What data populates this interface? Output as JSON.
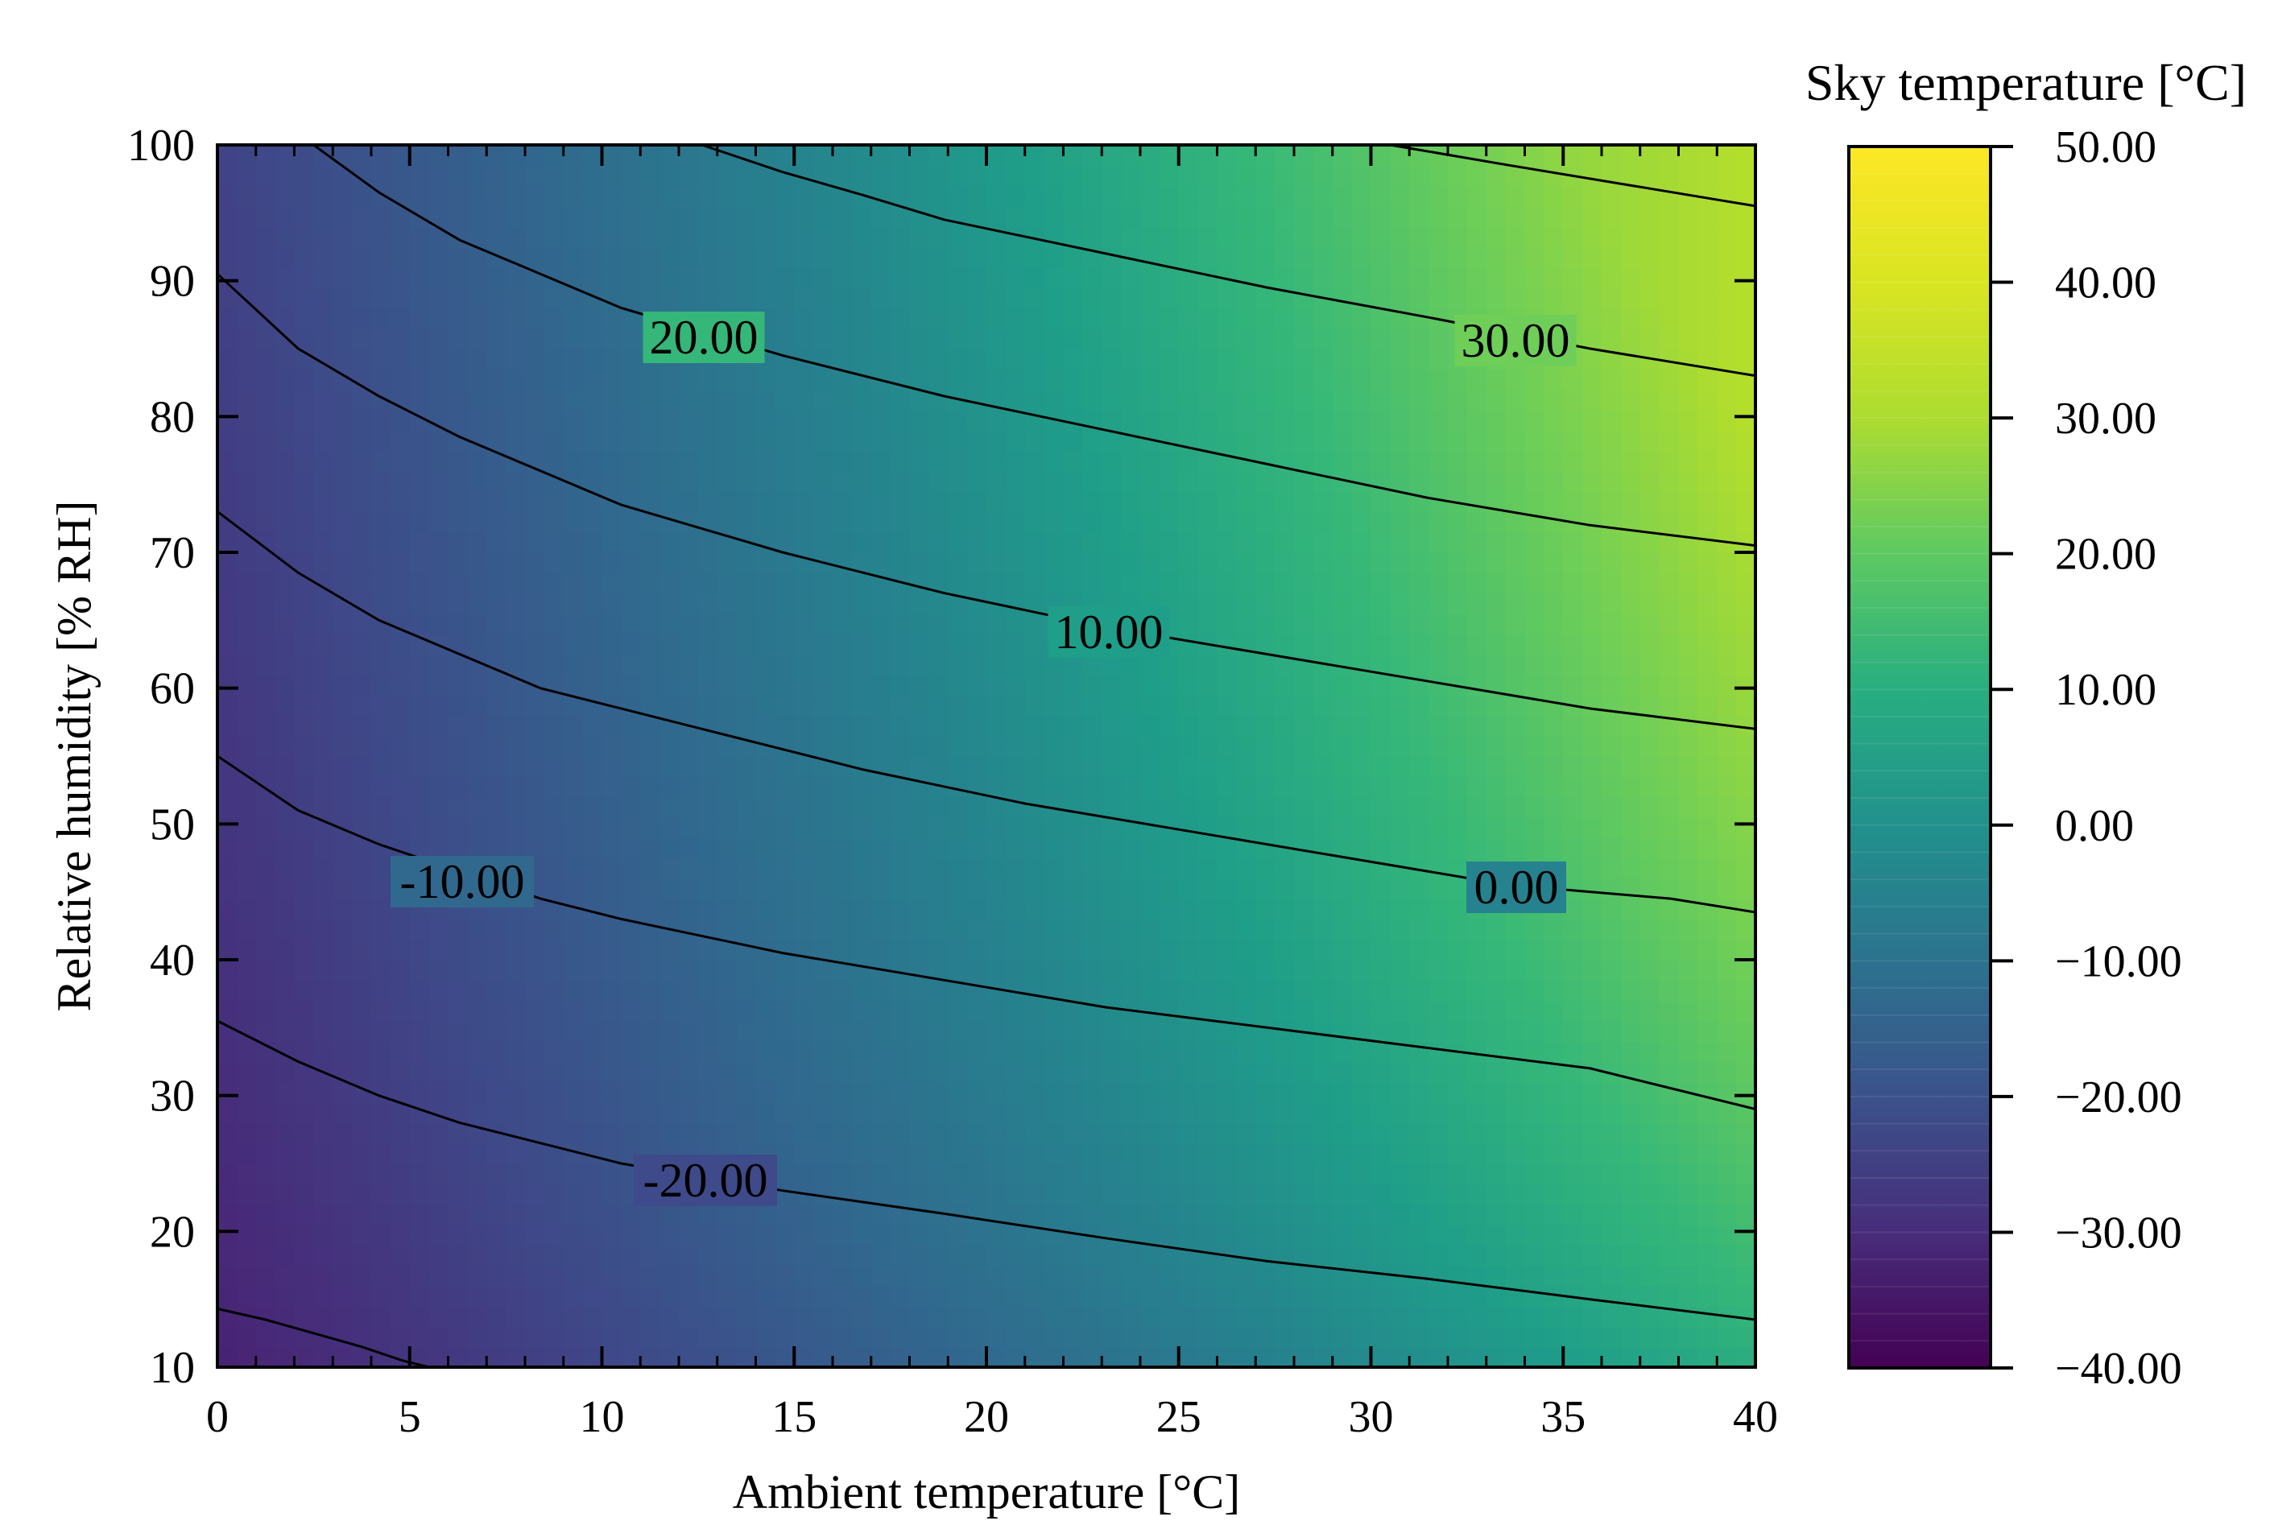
{
  "chart_data": {
    "type": "contour",
    "title": "",
    "xlabel": "Ambient temperature [°C]",
    "ylabel": "Relative humidity [% RH]",
    "xlim": [
      0,
      40
    ],
    "ylim": [
      10,
      100
    ],
    "x_ticks": [
      "0",
      "5",
      "10",
      "15",
      "20",
      "25",
      "30",
      "35",
      "40"
    ],
    "y_ticks": [
      "10",
      "20",
      "30",
      "40",
      "50",
      "60",
      "70",
      "80",
      "90",
      "100"
    ],
    "colorbar": {
      "label": "Sky temperature [°C]",
      "range": [
        -40,
        50
      ],
      "ticks": [
        "−40.00",
        "−30.00",
        "−20.00",
        "−10.00",
        "0.00",
        "10.00",
        "20.00",
        "30.00",
        "40.00",
        "50.00"
      ],
      "colormap": "viridis"
    },
    "contours": [
      {
        "level": -30,
        "label": "",
        "points": [
          [
            0,
            14.3
          ],
          [
            1.25,
            13.5
          ],
          [
            2.5,
            12.5
          ],
          [
            3.75,
            11.5
          ],
          [
            4.8,
            10.5
          ],
          [
            5.5,
            10
          ]
        ]
      },
      {
        "level": -20,
        "label": "-20.00",
        "points": [
          [
            0,
            35.5
          ],
          [
            2.1,
            32.5
          ],
          [
            4.2,
            30
          ],
          [
            6.3,
            28
          ],
          [
            8.4,
            26.5
          ],
          [
            10.5,
            25
          ],
          [
            14.7,
            23
          ],
          [
            18.9,
            21.3
          ],
          [
            23.1,
            19.5
          ],
          [
            27.3,
            17.8
          ],
          [
            31.5,
            16.5
          ],
          [
            35.7,
            15
          ],
          [
            40,
            13.5
          ]
        ]
      },
      {
        "level": -10,
        "label": "-10.00",
        "points": [
          [
            0,
            55
          ],
          [
            2.1,
            51
          ],
          [
            4.2,
            48.5
          ],
          [
            8.4,
            44.5
          ],
          [
            10.5,
            43
          ],
          [
            14.7,
            40.5
          ],
          [
            18.9,
            38.5
          ],
          [
            23.1,
            36.5
          ],
          [
            27.3,
            35
          ],
          [
            31.5,
            33.5
          ],
          [
            35.7,
            32
          ],
          [
            40,
            29
          ]
        ]
      },
      {
        "level": 0,
        "label": "0.00",
        "points": [
          [
            0,
            73
          ],
          [
            2.1,
            68.5
          ],
          [
            4.2,
            65
          ],
          [
            6.3,
            62.5
          ],
          [
            8.4,
            60
          ],
          [
            12.6,
            57
          ],
          [
            16.8,
            54
          ],
          [
            21,
            51.5
          ],
          [
            25.2,
            49.5
          ],
          [
            29.4,
            47.5
          ],
          [
            33.6,
            45.5
          ],
          [
            37.8,
            44.5
          ],
          [
            40,
            43.5
          ]
        ]
      },
      {
        "level": 10,
        "label": "10.00",
        "points": [
          [
            0,
            90.5
          ],
          [
            2.1,
            85
          ],
          [
            4.2,
            81.5
          ],
          [
            6.3,
            78.5
          ],
          [
            8.4,
            76
          ],
          [
            10.5,
            73.5
          ],
          [
            14.7,
            70
          ],
          [
            18.9,
            67
          ],
          [
            23.1,
            64.5
          ],
          [
            27.3,
            62.5
          ],
          [
            31.5,
            60.5
          ],
          [
            35.7,
            58.5
          ],
          [
            40,
            57
          ]
        ]
      },
      {
        "level": 20,
        "label": "20.00",
        "points": [
          [
            2.5,
            100
          ],
          [
            4.2,
            96.5
          ],
          [
            6.3,
            93
          ],
          [
            8.4,
            90.5
          ],
          [
            10.5,
            88
          ],
          [
            14.7,
            84.5
          ],
          [
            18.9,
            81.5
          ],
          [
            23.1,
            79
          ],
          [
            27.3,
            76.5
          ],
          [
            31.5,
            74
          ],
          [
            35.7,
            72
          ],
          [
            40,
            70.5
          ]
        ]
      },
      {
        "level": 30,
        "label": "30.00",
        "points": [
          [
            12.6,
            100
          ],
          [
            14.7,
            98
          ],
          [
            16.8,
            96.3
          ],
          [
            18.9,
            94.5
          ],
          [
            23.1,
            92
          ],
          [
            27.3,
            89.5
          ],
          [
            31.5,
            87.3
          ],
          [
            35.7,
            85
          ],
          [
            40,
            83
          ]
        ]
      },
      {
        "level": 40,
        "label": "",
        "points": [
          [
            30.5,
            100
          ],
          [
            33.6,
            98.5
          ],
          [
            36.8,
            97
          ],
          [
            40,
            95.5
          ]
        ]
      }
    ]
  }
}
